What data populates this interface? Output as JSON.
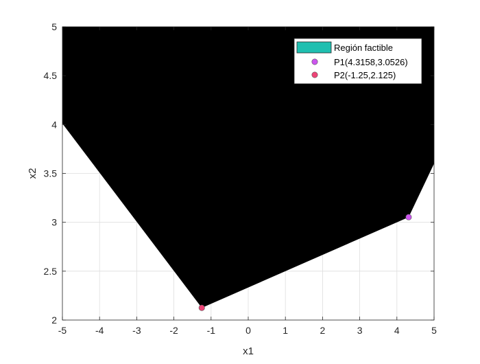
{
  "chart_data": {
    "type": "area",
    "xlabel": "x1",
    "ylabel": "x2",
    "xlim": [
      -5,
      5
    ],
    "ylim": [
      2,
      5
    ],
    "xticks": [
      -5,
      -4,
      -3,
      -2,
      -1,
      0,
      1,
      2,
      3,
      4,
      5
    ],
    "yticks": [
      2,
      2.5,
      3,
      3.5,
      4,
      4.5,
      5
    ],
    "xtick_labels": [
      "-5",
      "-4",
      "-3",
      "-2",
      "-1",
      "0",
      "1",
      "2",
      "3",
      "4",
      "5"
    ],
    "ytick_labels": [
      "2",
      "2.5",
      "3",
      "3.5",
      "4",
      "4.5",
      "5"
    ],
    "grid": true,
    "legend_position": "top-right",
    "region": {
      "name": "Región factible",
      "legend_color": "#1fbfb0",
      "render_color": "#000000",
      "vertices": [
        [
          -5,
          5
        ],
        [
          5,
          5
        ],
        [
          5,
          3.6
        ],
        [
          4.3158,
          3.0526
        ],
        [
          -1.25,
          2.125
        ],
        [
          -5,
          4.01
        ]
      ]
    },
    "points": [
      {
        "name": "P1(4.3158,3.0526)",
        "x": 4.3158,
        "y": 3.0526,
        "color": "#cc55ee"
      },
      {
        "name": "P2(-1.25,2.125)",
        "x": -1.25,
        "y": 2.125,
        "color": "#ee4477"
      }
    ]
  }
}
